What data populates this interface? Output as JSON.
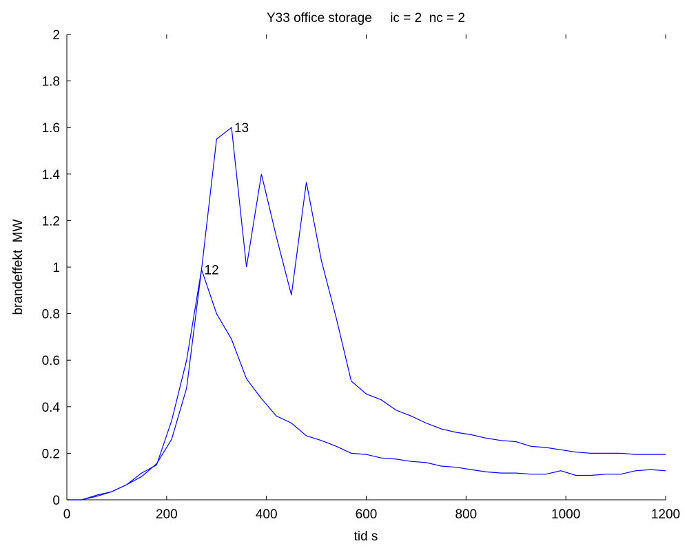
{
  "chart_data": {
    "type": "line",
    "title": "Y33 office storage     ic = 2  nc = 2",
    "xlabel": "tid s",
    "ylabel": "brandeffekt  MW",
    "xlim": [
      0,
      1200
    ],
    "ylim": [
      0,
      2
    ],
    "xticks": [
      "0",
      "200",
      "400",
      "600",
      "800",
      "1000",
      "1200"
    ],
    "yticks": [
      "0",
      "0.2",
      "0.4",
      "0.6",
      "0.8",
      "1",
      "1.2",
      "1.4",
      "1.6",
      "1.8",
      "2"
    ],
    "grid": false,
    "line_color": "#0000ff",
    "series": [
      {
        "label": "13",
        "label_at": [
          330,
          1.6
        ],
        "x": [
          0,
          30,
          60,
          90,
          120,
          150,
          180,
          210,
          240,
          270,
          300,
          330,
          360,
          390,
          420,
          450,
          480,
          510,
          540,
          570,
          600,
          630,
          660,
          690,
          720,
          750,
          780,
          810,
          840,
          870,
          900,
          930,
          960,
          990,
          1020,
          1050,
          1080,
          1110,
          1140,
          1170,
          1200
        ],
        "y": [
          0,
          0,
          0.02,
          0.035,
          0.065,
          0.1,
          0.155,
          0.26,
          0.48,
          0.99,
          1.55,
          1.6,
          1.0,
          1.4,
          1.13,
          0.88,
          1.365,
          1.03,
          0.78,
          0.51,
          0.455,
          0.43,
          0.385,
          0.36,
          0.33,
          0.305,
          0.29,
          0.28,
          0.265,
          0.255,
          0.25,
          0.23,
          0.225,
          0.215,
          0.205,
          0.2,
          0.2,
          0.2,
          0.195,
          0.195,
          0.195
        ]
      },
      {
        "label": "12",
        "label_at": [
          270,
          0.99
        ],
        "x": [
          0,
          30,
          60,
          90,
          120,
          150,
          180,
          210,
          240,
          270,
          300,
          330,
          360,
          390,
          420,
          450,
          480,
          510,
          540,
          570,
          600,
          630,
          660,
          690,
          720,
          750,
          780,
          810,
          840,
          870,
          900,
          930,
          960,
          990,
          1020,
          1050,
          1080,
          1110,
          1140,
          1170,
          1200
        ],
        "y": [
          0,
          0,
          0.015,
          0.035,
          0.065,
          0.115,
          0.15,
          0.34,
          0.6,
          0.99,
          0.8,
          0.69,
          0.52,
          0.435,
          0.36,
          0.33,
          0.275,
          0.255,
          0.23,
          0.2,
          0.195,
          0.18,
          0.175,
          0.165,
          0.16,
          0.145,
          0.14,
          0.13,
          0.12,
          0.115,
          0.115,
          0.11,
          0.11,
          0.125,
          0.105,
          0.105,
          0.11,
          0.11,
          0.125,
          0.13,
          0.125
        ]
      }
    ]
  }
}
